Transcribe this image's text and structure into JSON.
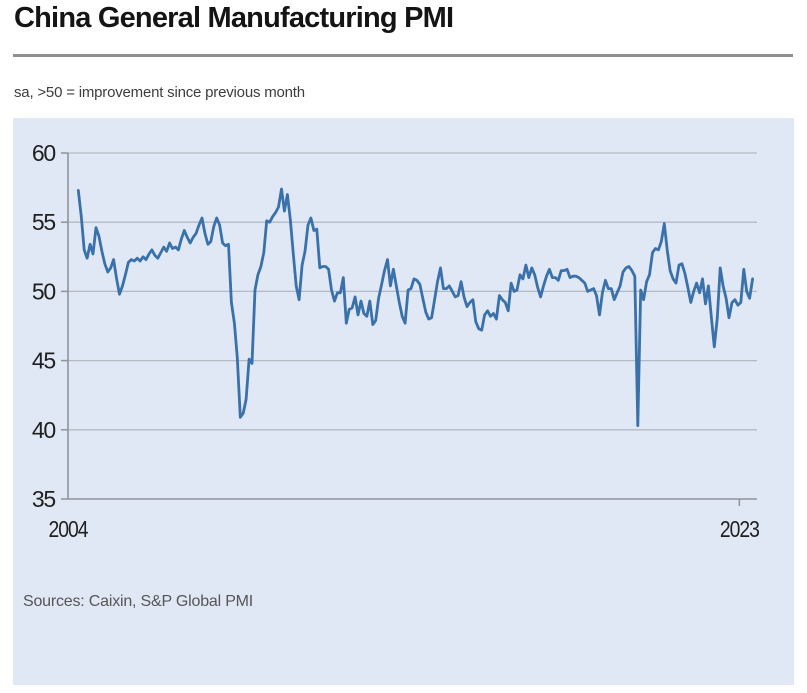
{
  "header": {
    "title": "China General Manufacturing PMI",
    "subtitle": "sa, >50 = improvement since previous month"
  },
  "source_note": "Sources: Caixin, S&P Global PMI",
  "chart_data": {
    "type": "line",
    "title": "China General Manufacturing PMI",
    "subtitle": "sa, >50 = improvement since previous month",
    "sources": "Sources: Caixin, S&P Global PMI",
    "start": {
      "year": 2004,
      "month": 4
    },
    "values": [
      57.3,
      55.4,
      53.0,
      52.4,
      53.4,
      52.7,
      54.6,
      54.0,
      52.9,
      52.0,
      51.4,
      51.7,
      52.3,
      50.9,
      49.8,
      50.4,
      51.2,
      52.1,
      52.3,
      52.2,
      52.4,
      52.2,
      52.5,
      52.3,
      52.7,
      53.0,
      52.6,
      52.4,
      52.8,
      53.2,
      52.9,
      53.5,
      53.1,
      53.2,
      53.0,
      53.8,
      54.4,
      53.9,
      53.5,
      53.9,
      54.2,
      54.8,
      55.3,
      54.2,
      53.4,
      53.6,
      54.7,
      55.3,
      54.8,
      53.5,
      53.3,
      53.4,
      49.2,
      47.7,
      45.2,
      40.9,
      41.2,
      42.2,
      45.1,
      44.8,
      50.1,
      51.2,
      51.8,
      52.8,
      55.1,
      55.0,
      55.4,
      55.7,
      56.1,
      57.4,
      55.8,
      57.0,
      55.2,
      52.7,
      50.4,
      49.4,
      51.9,
      52.9,
      54.8,
      55.3,
      54.4,
      54.5,
      51.7,
      51.8,
      51.8,
      51.6,
      50.1,
      49.3,
      49.9,
      49.9,
      51.0,
      47.7,
      48.7,
      48.8,
      49.6,
      48.3,
      49.3,
      48.4,
      48.2,
      49.3,
      47.6,
      47.9,
      49.5,
      50.5,
      51.5,
      52.3,
      50.4,
      51.6,
      50.4,
      49.2,
      48.2,
      47.7,
      50.1,
      50.2,
      50.9,
      50.8,
      50.5,
      49.5,
      48.5,
      48.0,
      48.1,
      49.4,
      50.7,
      51.7,
      50.2,
      50.2,
      50.4,
      50.0,
      49.6,
      49.7,
      50.7,
      49.6,
      48.9,
      49.2,
      49.4,
      47.8,
      47.3,
      47.2,
      48.3,
      48.6,
      48.2,
      48.4,
      48.0,
      49.7,
      49.4,
      49.2,
      48.6,
      50.6,
      50.0,
      50.1,
      51.2,
      50.9,
      51.9,
      51.0,
      51.7,
      51.2,
      50.3,
      49.6,
      50.4,
      51.1,
      51.6,
      51.0,
      51.0,
      50.8,
      51.5,
      51.5,
      51.6,
      51.0,
      51.1,
      51.1,
      51.0,
      50.8,
      50.6,
      50.0,
      50.1,
      50.2,
      49.7,
      48.3,
      49.9,
      50.8,
      50.2,
      50.2,
      49.4,
      49.9,
      50.4,
      51.4,
      51.7,
      51.8,
      51.5,
      51.1,
      40.3,
      50.1,
      49.4,
      50.7,
      51.2,
      52.8,
      53.1,
      53.0,
      53.6,
      54.9,
      53.0,
      51.5,
      50.9,
      50.6,
      51.9,
      52.0,
      51.3,
      50.3,
      49.2,
      50.0,
      50.6,
      49.9,
      50.9,
      49.1,
      50.4,
      48.1,
      46.0,
      48.1,
      51.7,
      50.4,
      49.5,
      48.1,
      49.2,
      49.4,
      49.0,
      49.2,
      51.6,
      50.0,
      49.5,
      50.9
    ],
    "ylim": [
      35,
      60
    ],
    "yticks": [
      35,
      40,
      45,
      50,
      55,
      60
    ],
    "xlim": [
      2004,
      2023.5
    ],
    "xticks": [
      {
        "label": "2004",
        "year": 2004,
        "tick": false
      },
      {
        "label": "2023",
        "year": 2023,
        "tick": true
      }
    ],
    "grid": true,
    "legend": false,
    "colors": {
      "line": "#3a71aa",
      "panel_bg": "#dfe8f4",
      "grid": "#b3bac3",
      "axis": "#8e949c",
      "tick_label": "#1f1f1f"
    }
  }
}
